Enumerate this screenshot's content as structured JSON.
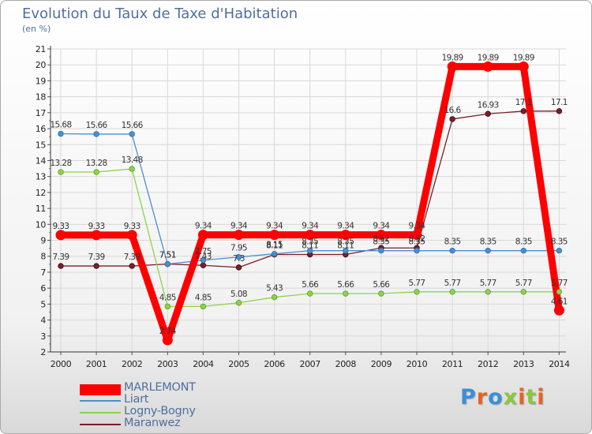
{
  "title": "Evolution du Taux de Taxe d'Habitation",
  "subtitle": "(en %)",
  "logo_text": "Proxiti",
  "chart_data": {
    "type": "line",
    "title": "Evolution du Taux de Taxe d'Habitation",
    "ylabel": "(en %)",
    "xlabel": "",
    "x": [
      "2000",
      "2001",
      "2002",
      "2003",
      "2004",
      "2005",
      "2006",
      "2007",
      "2008",
      "2009",
      "2010",
      "2011",
      "2012",
      "2013",
      "2014"
    ],
    "ylim": [
      2,
      21
    ],
    "yticks": [
      2,
      3,
      4,
      5,
      6,
      7,
      8,
      9,
      10,
      11,
      12,
      13,
      14,
      15,
      16,
      17,
      18,
      19,
      20,
      21
    ],
    "grid": true,
    "legend_position": "bottom-left",
    "series": [
      {
        "name": "MARLEMONT",
        "color": "#ff0000",
        "values": [
          9.33,
          9.33,
          9.33,
          2.74,
          9.34,
          9.34,
          9.34,
          9.34,
          9.34,
          9.34,
          9.34,
          19.89,
          19.89,
          19.89,
          4.61
        ],
        "labels": [
          "9.33",
          "9.33",
          "9.33",
          "2.74",
          "9.34",
          "9.34",
          "9.34",
          "9.34",
          "9.34",
          "9.34",
          "9.34",
          "19.89",
          "19.89",
          "19.89",
          "4.61"
        ]
      },
      {
        "name": "Liart",
        "color": "#4a8fcf",
        "values": [
          15.68,
          15.66,
          15.66,
          7.51,
          7.75,
          7.95,
          8.15,
          8.35,
          8.35,
          8.35,
          8.35,
          8.35,
          8.35,
          8.35,
          8.35
        ],
        "labels": [
          "15.68",
          "15.66",
          "15.66",
          "7.51",
          "7.75",
          "7.95",
          "8.15",
          "8.35",
          "8.35",
          "8.35",
          "8.35",
          "8.35",
          "8.35",
          "8.35",
          "8.35"
        ]
      },
      {
        "name": "Logny-Bogny",
        "color": "#8cd34a",
        "values": [
          13.28,
          13.28,
          13.48,
          4.85,
          4.85,
          5.08,
          5.43,
          5.66,
          5.66,
          5.66,
          5.77,
          5.77,
          5.77,
          5.77,
          5.77
        ],
        "labels": [
          "13.28",
          "13.28",
          "13.48",
          "4.85",
          "4.85",
          "5.08",
          "5.43",
          "5.66",
          "5.66",
          "5.66",
          "5.77",
          "5.77",
          "5.77",
          "5.77",
          "5.77"
        ]
      },
      {
        "name": "Maranwez",
        "color": "#7a1f2a",
        "values": [
          7.39,
          7.39,
          7.39,
          7.51,
          7.43,
          7.3,
          8.11,
          8.11,
          8.11,
          8.52,
          8.52,
          16.6,
          16.93,
          17.1,
          17.1
        ],
        "labels": [
          "7.39",
          "7.39",
          "7.39",
          "7.51",
          "7.43",
          "7.3",
          "8.11",
          "8.11",
          "8.11",
          "8.52",
          "8.52",
          "16.6",
          "16.93",
          "17.1",
          "17.1"
        ]
      }
    ]
  }
}
